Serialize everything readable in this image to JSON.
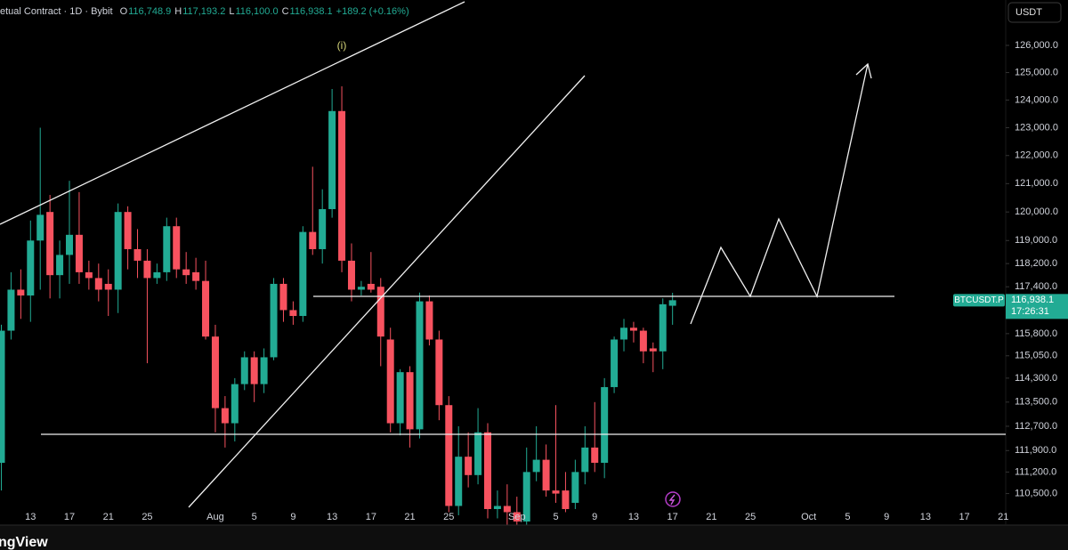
{
  "header": {
    "name": "etual Contract · 1D · Bybit",
    "ohlc": [
      {
        "label": "O",
        "value": "116,748.9"
      },
      {
        "label": "H",
        "value": "117,193.2"
      },
      {
        "label": "L",
        "value": "116,100.0"
      },
      {
        "label": "C",
        "value": "116,938.1"
      }
    ],
    "change": "+189.2 (+0.16%)",
    "currency": "USDT"
  },
  "chart_data": {
    "type": "candlestick",
    "log_scale": true,
    "grid": false,
    "up_color": "#22ab94",
    "down_color": "#f7525f",
    "annotation": "(i)",
    "footer": "ngView",
    "last_price": {
      "symbol": "BTCUSDT.P",
      "value": 116938.1,
      "label": "116,938.1",
      "countdown": "17:26:31"
    },
    "ylim": [
      109485,
      127686
    ],
    "yticks": [
      {
        "value": 126000,
        "label": "126,000.0"
      },
      {
        "value": 125000,
        "label": "125,000.0"
      },
      {
        "value": 124000,
        "label": "124,000.0"
      },
      {
        "value": 123000,
        "label": "123,000.0"
      },
      {
        "value": 122000,
        "label": "122,000.0"
      },
      {
        "value": 121000,
        "label": "121,000.0"
      },
      {
        "value": 120000,
        "label": "120,000.0"
      },
      {
        "value": 119000,
        "label": "119,000.0"
      },
      {
        "value": 118200,
        "label": "118,200.0"
      },
      {
        "value": 117400,
        "label": "117,400.0"
      },
      {
        "value": 115800,
        "label": "115,800.0"
      },
      {
        "value": 115050,
        "label": "115,050.0"
      },
      {
        "value": 114300,
        "label": "114,300.0"
      },
      {
        "value": 113500,
        "label": "113,500.0"
      },
      {
        "value": 112700,
        "label": "112,700.0"
      },
      {
        "value": 111900,
        "label": "111,900.0"
      },
      {
        "value": 111200,
        "label": "111,200.0"
      },
      {
        "value": 110500,
        "label": "110,500.0"
      }
    ],
    "xticks": [
      {
        "value": "Jul 13",
        "label": "13"
      },
      {
        "value": "Jul 17",
        "label": "17"
      },
      {
        "value": "Jul 21",
        "label": "21"
      },
      {
        "value": "Jul 25",
        "label": "25"
      },
      {
        "value": "Aug 1",
        "label": "Aug"
      },
      {
        "value": "Aug 5",
        "label": "5"
      },
      {
        "value": "Aug 9",
        "label": "9"
      },
      {
        "value": "Aug 13",
        "label": "13"
      },
      {
        "value": "Aug 17",
        "label": "17"
      },
      {
        "value": "Aug 21",
        "label": "21"
      },
      {
        "value": "Aug 25",
        "label": "25"
      },
      {
        "value": "Sep 1",
        "label": "Sep"
      },
      {
        "value": "Sep 5",
        "label": "5"
      },
      {
        "value": "Sep 9",
        "label": "9"
      },
      {
        "value": "Sep 13",
        "label": "13"
      },
      {
        "value": "Sep 17",
        "label": "17"
      },
      {
        "value": "Sep 21",
        "label": "21"
      },
      {
        "value": "Sep 25",
        "label": "25"
      },
      {
        "value": "Oct 1",
        "label": "Oct"
      },
      {
        "value": "Oct 5",
        "label": "5"
      },
      {
        "value": "Oct 9",
        "label": "9"
      },
      {
        "value": "Oct 13",
        "label": "13"
      },
      {
        "value": "Oct 17",
        "label": "17"
      },
      {
        "value": "Oct 21",
        "label": "21"
      }
    ],
    "x": [
      "Jul 10",
      "Jul 11",
      "Jul 12",
      "Jul 13",
      "Jul 14",
      "Jul 15",
      "Jul 16",
      "Jul 17",
      "Jul 18",
      "Jul 19",
      "Jul 20",
      "Jul 21",
      "Jul 22",
      "Jul 23",
      "Jul 24",
      "Jul 25",
      "Jul 26",
      "Jul 27",
      "Jul 28",
      "Jul 29",
      "Jul 30",
      "Jul 31",
      "Aug 1",
      "Aug 2",
      "Aug 3",
      "Aug 4",
      "Aug 5",
      "Aug 6",
      "Aug 7",
      "Aug 8",
      "Aug 9",
      "Aug 10",
      "Aug 11",
      "Aug 12",
      "Aug 13",
      "Aug 14",
      "Aug 15",
      "Aug 16",
      "Aug 17",
      "Aug 18",
      "Aug 19",
      "Aug 20",
      "Aug 21",
      "Aug 22",
      "Aug 23",
      "Aug 24",
      "Aug 25",
      "Aug 26",
      "Aug 27",
      "Aug 28",
      "Aug 29",
      "Aug 30",
      "Aug 31",
      "Sep 1",
      "Sep 2",
      "Sep 3",
      "Sep 4",
      "Sep 5",
      "Sep 6",
      "Sep 7",
      "Sep 8",
      "Sep 9",
      "Sep 10",
      "Sep 11",
      "Sep 12",
      "Sep 13",
      "Sep 14",
      "Sep 15",
      "Sep 16",
      "Sep 17"
    ],
    "ohlc": [
      [
        111500,
        116100,
        110600,
        115900
      ],
      [
        115900,
        117900,
        115600,
        117300
      ],
      [
        117300,
        118000,
        116300,
        117100
      ],
      [
        117100,
        119700,
        116200,
        119000
      ],
      [
        119000,
        123000,
        117300,
        119900
      ],
      [
        120000,
        120600,
        117000,
        117800
      ],
      [
        117800,
        119000,
        117000,
        118500
      ],
      [
        118500,
        121100,
        117500,
        119200
      ],
      [
        119200,
        120700,
        117500,
        117900
      ],
      [
        117900,
        118300,
        117300,
        117700
      ],
      [
        117700,
        118200,
        116900,
        117300
      ],
      [
        117500,
        118000,
        116400,
        117300
      ],
      [
        117300,
        120300,
        116500,
        120000
      ],
      [
        120000,
        120200,
        118000,
        118700
      ],
      [
        118700,
        119400,
        117700,
        118300
      ],
      [
        118300,
        118700,
        114800,
        117700
      ],
      [
        117700,
        118200,
        117500,
        117900
      ],
      [
        117900,
        119800,
        117600,
        119500
      ],
      [
        119500,
        119800,
        117700,
        118000
      ],
      [
        118000,
        118600,
        117500,
        117800
      ],
      [
        117900,
        118400,
        117300,
        117600
      ],
      [
        117600,
        118300,
        115600,
        115700
      ],
      [
        115700,
        116100,
        112500,
        113300
      ],
      [
        113300,
        113700,
        112000,
        112800
      ],
      [
        112800,
        114300,
        112200,
        114100
      ],
      [
        114100,
        115200,
        113900,
        115000
      ],
      [
        115000,
        115200,
        113500,
        114100
      ],
      [
        114100,
        115300,
        113800,
        115000
      ],
      [
        115000,
        117700,
        114900,
        117500
      ],
      [
        117500,
        117700,
        116200,
        116600
      ],
      [
        116600,
        116900,
        116100,
        116400
      ],
      [
        116400,
        119500,
        116200,
        119300
      ],
      [
        119300,
        121600,
        118500,
        118700
      ],
      [
        118700,
        120800,
        118200,
        120100
      ],
      [
        120100,
        124400,
        119800,
        123600
      ],
      [
        123600,
        124500,
        117900,
        118300
      ],
      [
        118300,
        118900,
        116900,
        117300
      ],
      [
        117300,
        117600,
        117100,
        117400
      ],
      [
        117500,
        118600,
        117200,
        117300
      ],
      [
        117400,
        117700,
        114700,
        115700
      ],
      [
        115600,
        116000,
        112500,
        112800
      ],
      [
        112800,
        114600,
        112400,
        114500
      ],
      [
        114500,
        114700,
        112000,
        112600
      ],
      [
        112600,
        117200,
        112300,
        116900
      ],
      [
        116900,
        117100,
        115400,
        115600
      ],
      [
        115600,
        115900,
        112900,
        113400
      ],
      [
        113400,
        113700,
        109900,
        110100
      ],
      [
        110100,
        112700,
        109800,
        111700
      ],
      [
        111700,
        112500,
        110700,
        111100
      ],
      [
        111100,
        113300,
        110800,
        112500
      ],
      [
        112500,
        112800,
        109700,
        110000
      ],
      [
        110000,
        110600,
        109700,
        110100
      ],
      [
        110100,
        110800,
        109500,
        109900
      ],
      [
        109900,
        110400,
        109500,
        109600
      ],
      [
        109600,
        112000,
        109500,
        111200
      ],
      [
        111200,
        112700,
        110900,
        111600
      ],
      [
        111600,
        112100,
        110400,
        110600
      ],
      [
        110600,
        113400,
        110200,
        110500
      ],
      [
        110600,
        111200,
        109900,
        110000
      ],
      [
        110200,
        111600,
        110000,
        111200
      ],
      [
        111200,
        112700,
        110800,
        112000
      ],
      [
        112000,
        113500,
        111200,
        111500
      ],
      [
        111500,
        114300,
        111000,
        114000
      ],
      [
        114000,
        115700,
        113800,
        115600
      ],
      [
        115600,
        116300,
        115200,
        116000
      ],
      [
        116000,
        116200,
        115500,
        115900
      ],
      [
        115900,
        116000,
        114800,
        115200
      ],
      [
        115300,
        115500,
        114500,
        115200
      ],
      [
        115200,
        117000,
        114600,
        116800
      ],
      [
        116748.9,
        117193.2,
        116100,
        116938.1
      ]
    ]
  }
}
